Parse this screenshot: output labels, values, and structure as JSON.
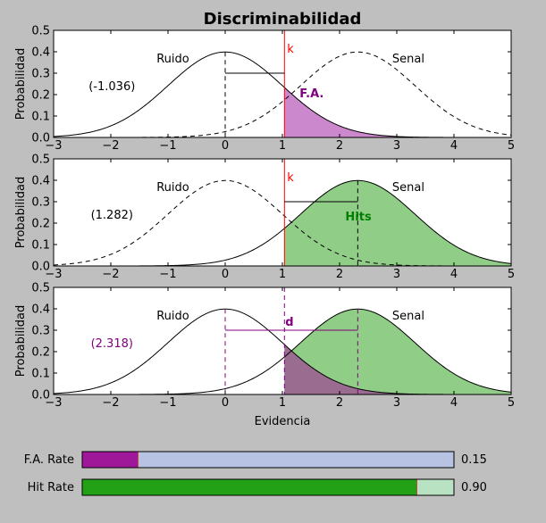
{
  "figure": {
    "title": "Discriminabilidad"
  },
  "chart_data": [
    {
      "type": "line",
      "panel": "top",
      "ylabel": "Probabilidad",
      "xlim": [
        -3,
        5
      ],
      "ylim": [
        0,
        0.5
      ],
      "xticks": [
        -3,
        -2,
        -1,
        0,
        1,
        2,
        3,
        4,
        5
      ],
      "yticks": [
        0.0,
        0.1,
        0.2,
        0.3,
        0.4,
        0.5
      ],
      "series": [
        {
          "name": "Ruido",
          "mean": 0,
          "sd": 1,
          "line": "solid"
        },
        {
          "name": "Senal",
          "mean": 2.318,
          "sd": 1,
          "line": "dashed"
        }
      ],
      "criterion_label": "k",
      "criterion_x": 1.036,
      "shaded_label": "F.A.",
      "z_label": "(-1.036)",
      "shade": "fa",
      "shade_color": "#cc88cc",
      "label_color": "#800080",
      "criterion_line_color": "#ff0000"
    },
    {
      "type": "line",
      "panel": "middle",
      "ylabel": "Probabilidad",
      "xlim": [
        -3,
        5
      ],
      "ylim": [
        0,
        0.5
      ],
      "xticks": [
        -3,
        -2,
        -1,
        0,
        1,
        2,
        3,
        4,
        5
      ],
      "yticks": [
        0.0,
        0.1,
        0.2,
        0.3,
        0.4,
        0.5
      ],
      "series": [
        {
          "name": "Ruido",
          "mean": 0,
          "sd": 1,
          "line": "dashed"
        },
        {
          "name": "Senal",
          "mean": 2.318,
          "sd": 1,
          "line": "solid"
        }
      ],
      "criterion_label": "k",
      "criterion_x": 1.036,
      "shaded_label": "Hits",
      "z_label": "(1.282)",
      "shade": "hits",
      "shade_color": "#90cd86",
      "label_color": "#008000",
      "criterion_line_color": "#ff0000"
    },
    {
      "type": "line",
      "panel": "bottom",
      "ylabel": "Probabilidad",
      "xlabel": "Evidencia",
      "xlim": [
        -3,
        5
      ],
      "ylim": [
        0,
        0.5
      ],
      "xticks": [
        -3,
        -2,
        -1,
        0,
        1,
        2,
        3,
        4,
        5
      ],
      "yticks": [
        0.0,
        0.1,
        0.2,
        0.3,
        0.4,
        0.5
      ],
      "series": [
        {
          "name": "Ruido",
          "mean": 0,
          "sd": 1,
          "line": "solid"
        },
        {
          "name": "Senal",
          "mean": 2.318,
          "sd": 1,
          "line": "solid"
        }
      ],
      "criterion_x": 1.036,
      "shaded_label": "d",
      "z_label": "(2.318)",
      "shade": "both",
      "shade_color": "#90cd86",
      "overlap_color": "#9a6c8f",
      "label_color": "#800080",
      "criterion_line_color": "#800080"
    }
  ],
  "rates": [
    {
      "label": "F.A. Rate",
      "value": 0.15,
      "value_text": "0.15",
      "fill_color": "#a0189a",
      "track_color": "#b8c2e2"
    },
    {
      "label": "Hit Rate",
      "value": 0.9,
      "value_text": "0.90",
      "fill_color": "#22a016",
      "track_color": "#b9e2c3"
    }
  ]
}
